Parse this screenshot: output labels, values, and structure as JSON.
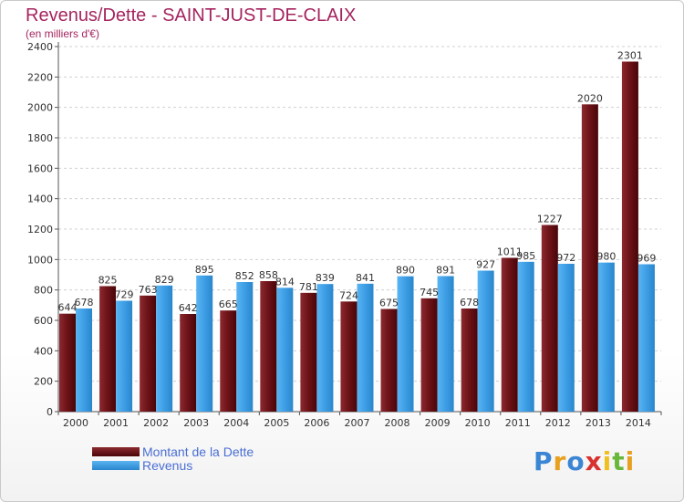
{
  "chart_data": {
    "type": "bar",
    "title": "Revenus/Dette - SAINT-JUST-DE-CLAIX",
    "subtitle": "(en milliers d'€)",
    "categories": [
      "2000",
      "2001",
      "2002",
      "2003",
      "2004",
      "2005",
      "2006",
      "2007",
      "2008",
      "2009",
      "2010",
      "2011",
      "2012",
      "2013",
      "2014"
    ],
    "series": [
      {
        "name": "Montant de la Dette",
        "color": "#7a1a1e",
        "values": [
          644,
          825,
          763,
          642,
          665,
          858,
          781,
          724,
          675,
          745,
          678,
          1011,
          1227,
          2020,
          2301
        ]
      },
      {
        "name": "Revenus",
        "color": "#3d9ee5",
        "values": [
          678,
          729,
          829,
          895,
          852,
          814,
          839,
          841,
          890,
          891,
          927,
          985,
          972,
          980,
          969
        ]
      }
    ],
    "value_labels": [
      [
        "644",
        "825",
        "763",
        "642",
        "665",
        "858",
        "781",
        "724",
        "675",
        "745",
        "678",
        "1011",
        "1227",
        "2020",
        "2301"
      ],
      [
        "678",
        "729",
        "829",
        "895",
        "852",
        "814",
        "839",
        "841",
        "890",
        "891",
        "927",
        "985",
        "972",
        "980",
        "969"
      ]
    ],
    "yticks": [
      "0",
      "200",
      "400",
      "600",
      "800",
      "1000",
      "1200",
      "1400",
      "1600",
      "1800",
      "2000",
      "2200",
      "2400"
    ],
    "ylim": [
      0,
      2400
    ],
    "grid": true,
    "legend_position": "bottom-left"
  },
  "logo": {
    "letters": [
      "P",
      "r",
      "o",
      "x",
      "i",
      "t",
      "i"
    ]
  }
}
